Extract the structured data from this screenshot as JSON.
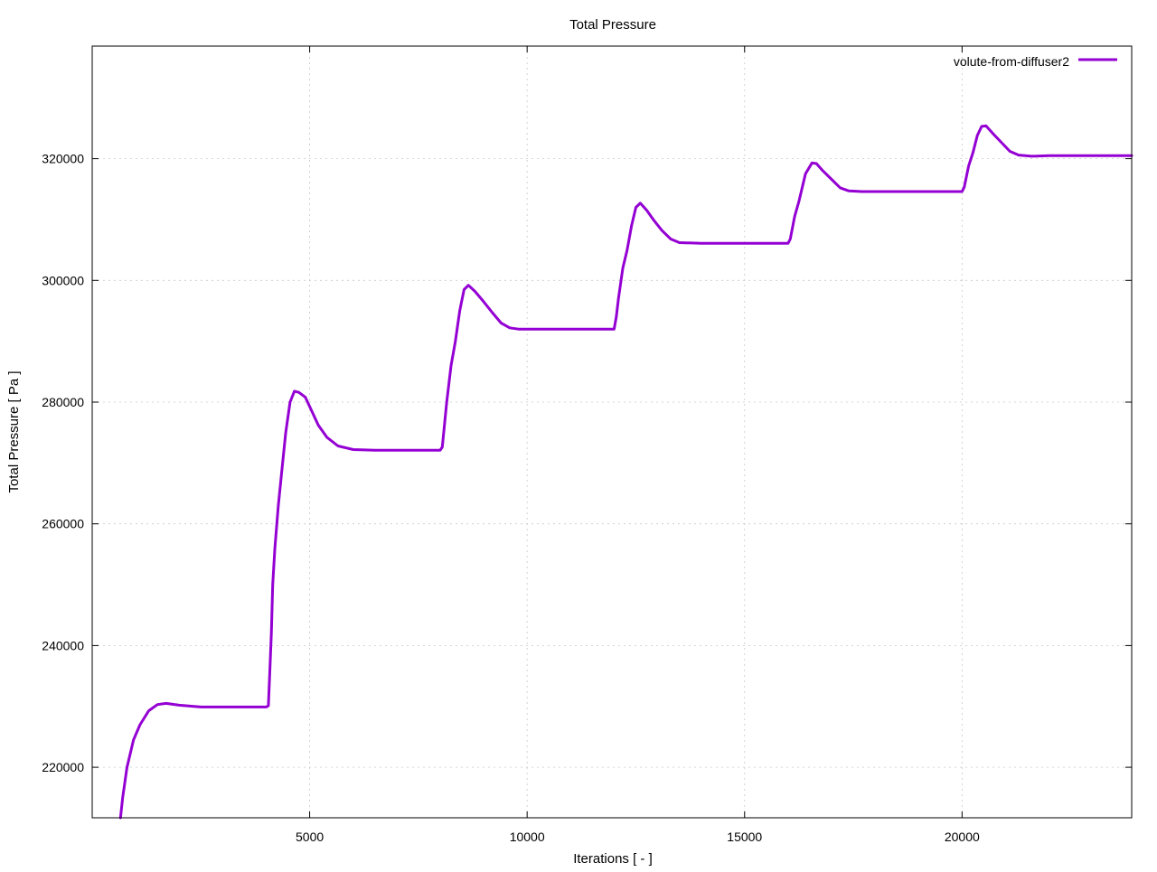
{
  "chart_data": {
    "type": "line",
    "title": "Total Pressure",
    "xlabel": "Iterations [ - ]",
    "ylabel": "Total Pressure [ Pa ]",
    "xlim": [
      0,
      23900
    ],
    "ylim": [
      211700,
      338500
    ],
    "x_ticks": [
      5000,
      10000,
      15000,
      20000
    ],
    "y_ticks": [
      220000,
      240000,
      260000,
      280000,
      300000,
      320000
    ],
    "x_tick_labels": [
      "5000",
      "10000",
      "15000",
      "20000"
    ],
    "y_tick_labels": [
      "220000",
      "240000",
      "260000",
      "280000",
      "300000",
      "320000"
    ],
    "grid": true,
    "legend_position": "top-right",
    "series": [
      {
        "name": "volute-from-diffuser2",
        "color": "#9400d3",
        "points": [
          [
            650,
            211700
          ],
          [
            700,
            215000
          ],
          [
            800,
            220000
          ],
          [
            950,
            224500
          ],
          [
            1100,
            227000
          ],
          [
            1300,
            229300
          ],
          [
            1500,
            230300
          ],
          [
            1700,
            230500
          ],
          [
            2000,
            230200
          ],
          [
            2500,
            229900
          ],
          [
            3000,
            229900
          ],
          [
            3500,
            229900
          ],
          [
            4000,
            229900
          ],
          [
            4050,
            230100
          ],
          [
            4080,
            235000
          ],
          [
            4120,
            242000
          ],
          [
            4150,
            250000
          ],
          [
            4200,
            256000
          ],
          [
            4280,
            263000
          ],
          [
            4350,
            268000
          ],
          [
            4450,
            275000
          ],
          [
            4550,
            280000
          ],
          [
            4650,
            281800
          ],
          [
            4750,
            281600
          ],
          [
            4900,
            280800
          ],
          [
            5050,
            278500
          ],
          [
            5200,
            276200
          ],
          [
            5400,
            274200
          ],
          [
            5650,
            272800
          ],
          [
            6000,
            272200
          ],
          [
            6500,
            272100
          ],
          [
            7000,
            272100
          ],
          [
            7500,
            272100
          ],
          [
            8000,
            272100
          ],
          [
            8050,
            272600
          ],
          [
            8150,
            280000
          ],
          [
            8250,
            286000
          ],
          [
            8350,
            290000
          ],
          [
            8450,
            295000
          ],
          [
            8550,
            298500
          ],
          [
            8650,
            299200
          ],
          [
            8800,
            298200
          ],
          [
            9000,
            296500
          ],
          [
            9200,
            294700
          ],
          [
            9400,
            293000
          ],
          [
            9600,
            292200
          ],
          [
            9800,
            292000
          ],
          [
            10500,
            292000
          ],
          [
            11000,
            292000
          ],
          [
            11500,
            292000
          ],
          [
            12000,
            292000
          ],
          [
            12050,
            294000
          ],
          [
            12100,
            297000
          ],
          [
            12200,
            302000
          ],
          [
            12300,
            305000
          ],
          [
            12400,
            309000
          ],
          [
            12500,
            312000
          ],
          [
            12600,
            312700
          ],
          [
            12750,
            311500
          ],
          [
            12900,
            310000
          ],
          [
            13100,
            308200
          ],
          [
            13300,
            306800
          ],
          [
            13500,
            306200
          ],
          [
            14000,
            306100
          ],
          [
            14500,
            306100
          ],
          [
            15000,
            306100
          ],
          [
            15500,
            306100
          ],
          [
            16000,
            306100
          ],
          [
            16050,
            306800
          ],
          [
            16150,
            310500
          ],
          [
            16250,
            313000
          ],
          [
            16400,
            317500
          ],
          [
            16550,
            319300
          ],
          [
            16650,
            319200
          ],
          [
            16800,
            318000
          ],
          [
            17000,
            316600
          ],
          [
            17200,
            315200
          ],
          [
            17400,
            314700
          ],
          [
            17700,
            314600
          ],
          [
            18200,
            314600
          ],
          [
            18800,
            314600
          ],
          [
            19500,
            314600
          ],
          [
            20000,
            314600
          ],
          [
            20050,
            315300
          ],
          [
            20150,
            318800
          ],
          [
            20250,
            321000
          ],
          [
            20350,
            323800
          ],
          [
            20450,
            325300
          ],
          [
            20550,
            325400
          ],
          [
            20700,
            324200
          ],
          [
            20900,
            322700
          ],
          [
            21100,
            321200
          ],
          [
            21300,
            320600
          ],
          [
            21600,
            320400
          ],
          [
            22000,
            320500
          ],
          [
            22500,
            320500
          ],
          [
            23000,
            320500
          ],
          [
            23500,
            320500
          ],
          [
            23900,
            320500
          ]
        ]
      }
    ]
  }
}
